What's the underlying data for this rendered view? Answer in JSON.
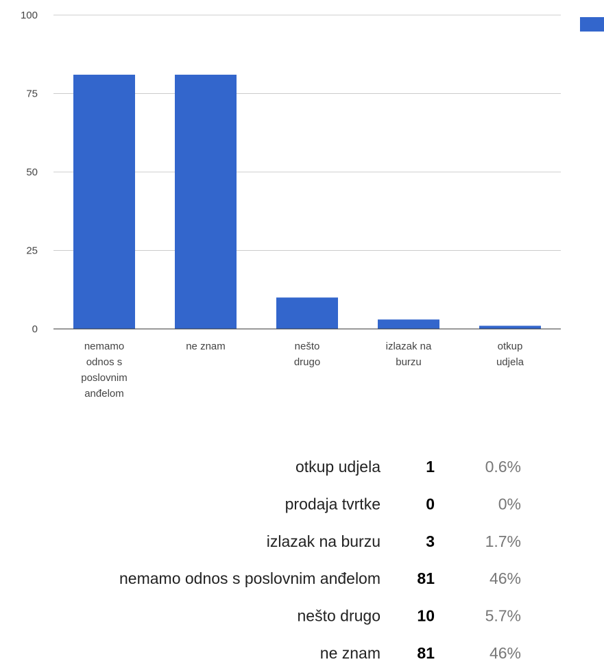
{
  "chart_data": {
    "type": "bar",
    "categories": [
      "nemamo odnos s poslovnim anđelom",
      "ne znam",
      "nešto drugo",
      "izlazak na burzu",
      "otkup udjela"
    ],
    "values": [
      81,
      81,
      10,
      3,
      1
    ],
    "color": "#3366cc",
    "ylim": [
      0,
      100
    ],
    "yticks": [
      0,
      25,
      50,
      75,
      100
    ],
    "grid": true
  },
  "table": {
    "rows": [
      [
        "otkup udjela",
        "1",
        "0.6%"
      ],
      [
        "prodaja tvrtke",
        "0",
        "0%"
      ],
      [
        "izlazak na burzu",
        "3",
        "1.7%"
      ],
      [
        "nemamo odnos s poslovnim anđelom",
        "81",
        "46%"
      ],
      [
        "nešto drugo",
        "10",
        "5.7%"
      ],
      [
        "ne znam",
        "81",
        "46%"
      ]
    ]
  }
}
